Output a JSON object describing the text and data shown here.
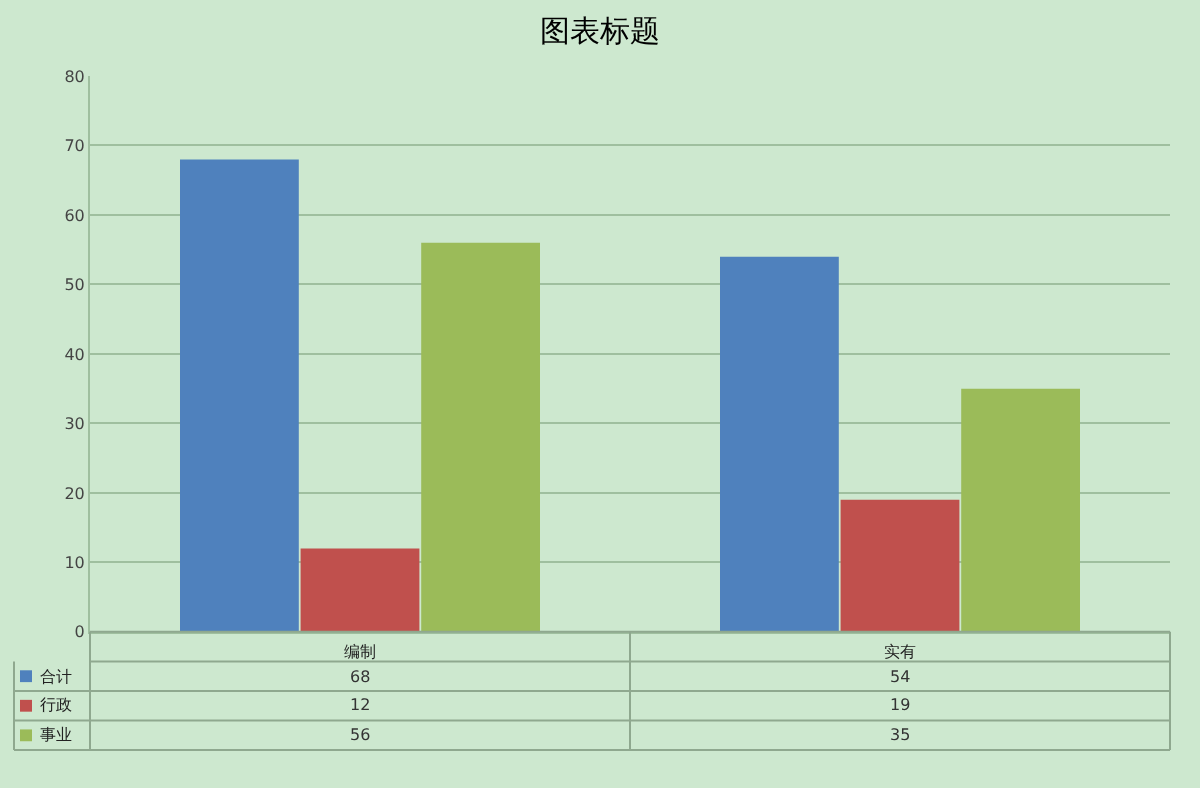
{
  "chart_data": {
    "type": "bar",
    "title": "图表标题",
    "categories": [
      "编制",
      "实有"
    ],
    "series": [
      {
        "name": "合计",
        "color": "#4f81bd",
        "values": [
          68,
          54
        ]
      },
      {
        "name": "行政",
        "color": "#c0504d",
        "values": [
          12,
          19
        ]
      },
      {
        "name": "事业",
        "color": "#9bbb59",
        "values": [
          56,
          35
        ]
      }
    ],
    "ylim": [
      0,
      80
    ],
    "yticks": [
      0,
      10,
      20,
      30,
      40,
      50,
      60,
      70,
      80
    ],
    "grid": "y",
    "legend": "bottom left",
    "data_labels": true
  }
}
